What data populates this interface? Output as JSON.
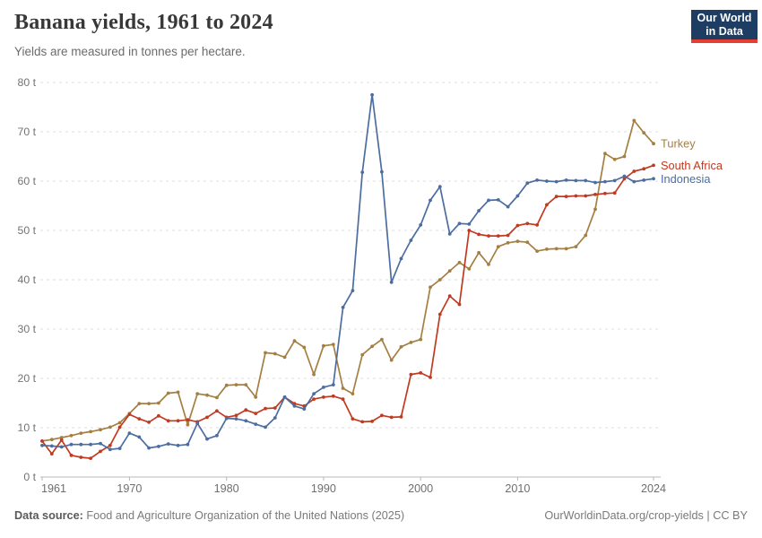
{
  "header": {
    "title": "Banana yields, 1961 to 2024",
    "subtitle": "Yields are measured in tonnes per hectare.",
    "logo": {
      "line1": "Our World",
      "line2": "in Data",
      "bg": "#1D3D63",
      "accent": "#E73E34"
    }
  },
  "footer": {
    "source_label": "Data source:",
    "source_text": "Food and Agriculture Organization of the United Nations (2025)",
    "credit": "OurWorldinData.org/crop-yields | CC BY"
  },
  "chart_data": {
    "type": "line",
    "title": "Banana yields, 1961 to 2024",
    "subtitle": "Yields are measured in tonnes per hectare.",
    "xlabel": "",
    "ylabel": "",
    "unit": "tonnes per hectare",
    "ylim": [
      0,
      80
    ],
    "yticks": [
      0,
      10,
      20,
      30,
      40,
      50,
      60,
      70,
      80
    ],
    "ytick_suffix": " t",
    "xticks": [
      1961,
      1970,
      1980,
      1990,
      2000,
      2010,
      2024
    ],
    "grid": "horizontal-dashed",
    "legend_position": "line-end-labels",
    "x": [
      1961,
      1962,
      1963,
      1964,
      1965,
      1966,
      1967,
      1968,
      1969,
      1970,
      1971,
      1972,
      1973,
      1974,
      1975,
      1976,
      1977,
      1978,
      1979,
      1980,
      1981,
      1982,
      1983,
      1984,
      1985,
      1986,
      1987,
      1988,
      1989,
      1990,
      1991,
      1992,
      1993,
      1994,
      1995,
      1996,
      1997,
      1998,
      1999,
      2000,
      2001,
      2002,
      2003,
      2004,
      2005,
      2006,
      2007,
      2008,
      2009,
      2010,
      2011,
      2012,
      2013,
      2014,
      2015,
      2016,
      2017,
      2018,
      2019,
      2020,
      2021,
      2022,
      2023,
      2024
    ],
    "series": [
      {
        "name": "Turkey",
        "color": "#A57F42",
        "values": [
          7.3,
          7.6,
          8.0,
          8.4,
          8.9,
          9.2,
          9.6,
          10.1,
          11.0,
          12.9,
          14.9,
          14.9,
          15.0,
          17.0,
          17.2,
          10.6,
          16.9,
          16.6,
          16.1,
          18.6,
          18.7,
          18.7,
          16.2,
          25.2,
          25.0,
          24.3,
          27.6,
          26.3,
          20.8,
          26.6,
          26.9,
          18.0,
          16.9,
          24.8,
          26.5,
          27.9,
          23.7,
          26.4,
          27.3,
          27.9,
          38.5,
          40.0,
          41.8,
          43.5,
          42.2,
          45.5,
          43.1,
          46.7,
          47.5,
          47.8,
          47.6,
          45.8,
          46.2,
          46.3,
          46.3,
          46.7,
          49.0,
          54.3,
          65.6,
          64.4,
          65.0,
          72.3,
          69.8,
          67.6
        ]
      },
      {
        "name": "South Africa",
        "color": "#C03A21",
        "values": [
          7.3,
          4.7,
          7.5,
          4.4,
          4.0,
          3.8,
          5.2,
          6.4,
          10.1,
          12.7,
          11.8,
          11.1,
          12.4,
          11.4,
          11.4,
          11.6,
          11.2,
          12.1,
          13.4,
          12.1,
          12.5,
          13.6,
          12.9,
          13.9,
          14.0,
          16.2,
          14.9,
          14.4,
          15.8,
          16.2,
          16.4,
          15.8,
          11.8,
          11.2,
          11.3,
          12.5,
          12.1,
          12.2,
          20.8,
          21.1,
          20.2,
          33.0,
          36.7,
          35.0,
          50.0,
          49.2,
          48.9,
          48.9,
          49.0,
          51.0,
          51.4,
          51.1,
          55.2,
          56.9,
          56.9,
          57.0,
          57.0,
          57.3,
          57.5,
          57.6,
          60.5,
          62.0,
          62.5,
          63.2
        ]
      },
      {
        "name": "Indonesia",
        "color": "#4C6DA0",
        "values": [
          6.4,
          6.3,
          6.1,
          6.6,
          6.6,
          6.6,
          6.8,
          5.6,
          5.8,
          8.9,
          8.1,
          5.9,
          6.2,
          6.7,
          6.4,
          6.6,
          10.9,
          7.7,
          8.4,
          11.9,
          11.8,
          11.4,
          10.7,
          10.1,
          12.0,
          16.2,
          14.4,
          13.8,
          16.9,
          18.2,
          18.7,
          34.4,
          37.8,
          61.8,
          77.5,
          61.9,
          39.5,
          44.3,
          48.0,
          51.1,
          56.1,
          58.9,
          49.3,
          51.4,
          51.3,
          54.0,
          56.1,
          56.2,
          54.8,
          57.0,
          59.6,
          60.2,
          60.0,
          59.9,
          60.2,
          60.1,
          60.1,
          59.7,
          59.9,
          60.1,
          61.0,
          59.9,
          60.2,
          60.5
        ]
      }
    ]
  }
}
